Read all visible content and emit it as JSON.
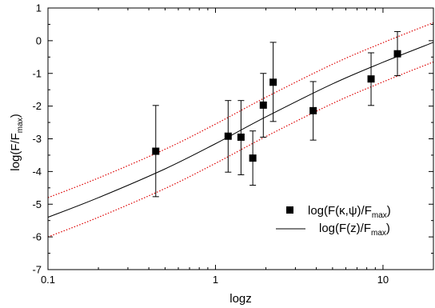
{
  "chart_data": {
    "type": "scatter",
    "title": "",
    "xlabel": "logz",
    "ylabel": "log(F/F",
    "ylabel_sub": "max",
    "ylabel_close": ")",
    "x_scale": "log",
    "xlim": [
      0.1,
      20
    ],
    "ylim": [
      -7,
      1
    ],
    "x_ticks": [
      0.1,
      1,
      10
    ],
    "x_tick_labels": [
      "0.1",
      "1",
      "10"
    ],
    "y_ticks": [
      1,
      0,
      -1,
      -2,
      -3,
      -4,
      -5,
      -6,
      -7
    ],
    "y_tick_labels": [
      "1",
      "0",
      "-1",
      "-2",
      "-3",
      "-4",
      "-5",
      "-6",
      "-7"
    ],
    "grid": false,
    "legend_position": "lower-right",
    "series": [
      {
        "kind": "points-with-errorbars",
        "marker": "square",
        "legend": {
          "main": "log(F(κ,ψ)/F",
          "sub": "max",
          "close": ")"
        },
        "points": [
          {
            "x": 0.44,
            "y": -3.38,
            "lo": -4.77,
            "hi": -1.98
          },
          {
            "x": 1.19,
            "y": -2.92,
            "lo": -4.02,
            "hi": -1.83
          },
          {
            "x": 1.42,
            "y": -2.95,
            "lo": -4.1,
            "hi": -1.83
          },
          {
            "x": 1.67,
            "y": -3.59,
            "lo": -4.42,
            "hi": -2.76
          },
          {
            "x": 1.93,
            "y": -1.97,
            "lo": -2.95,
            "hi": -1.0
          },
          {
            "x": 2.21,
            "y": -1.27,
            "lo": -2.47,
            "hi": -0.05
          },
          {
            "x": 3.83,
            "y": -2.14,
            "lo": -3.04,
            "hi": -1.25
          },
          {
            "x": 8.49,
            "y": -1.17,
            "lo": -1.98,
            "hi": -0.37
          },
          {
            "x": 12.2,
            "y": -0.4,
            "lo": -1.07,
            "hi": 0.28
          }
        ]
      },
      {
        "kind": "curve",
        "color": "#000000",
        "legend": {
          "main": "log(F(z)/F",
          "sub": "max",
          "close": ")"
        },
        "x": [
          0.1,
          0.2,
          0.5,
          1,
          2,
          5,
          10,
          20
        ],
        "y": [
          -5.4,
          -4.8,
          -3.92,
          -3.15,
          -2.33,
          -1.32,
          -0.66,
          -0.05
        ]
      },
      {
        "kind": "curve",
        "color": "#dd0000",
        "style": "dotted",
        "x": [
          0.1,
          0.2,
          0.5,
          1,
          2,
          5,
          10,
          20
        ],
        "y": [
          -4.8,
          -4.2,
          -3.32,
          -2.55,
          -1.73,
          -0.72,
          -0.06,
          0.55
        ]
      },
      {
        "kind": "curve",
        "color": "#dd0000",
        "style": "dotted",
        "x": [
          0.1,
          0.2,
          0.5,
          1,
          2,
          5,
          10,
          20
        ],
        "y": [
          -6.0,
          -5.4,
          -4.52,
          -3.75,
          -2.93,
          -1.92,
          -1.26,
          -0.65
        ]
      }
    ]
  }
}
